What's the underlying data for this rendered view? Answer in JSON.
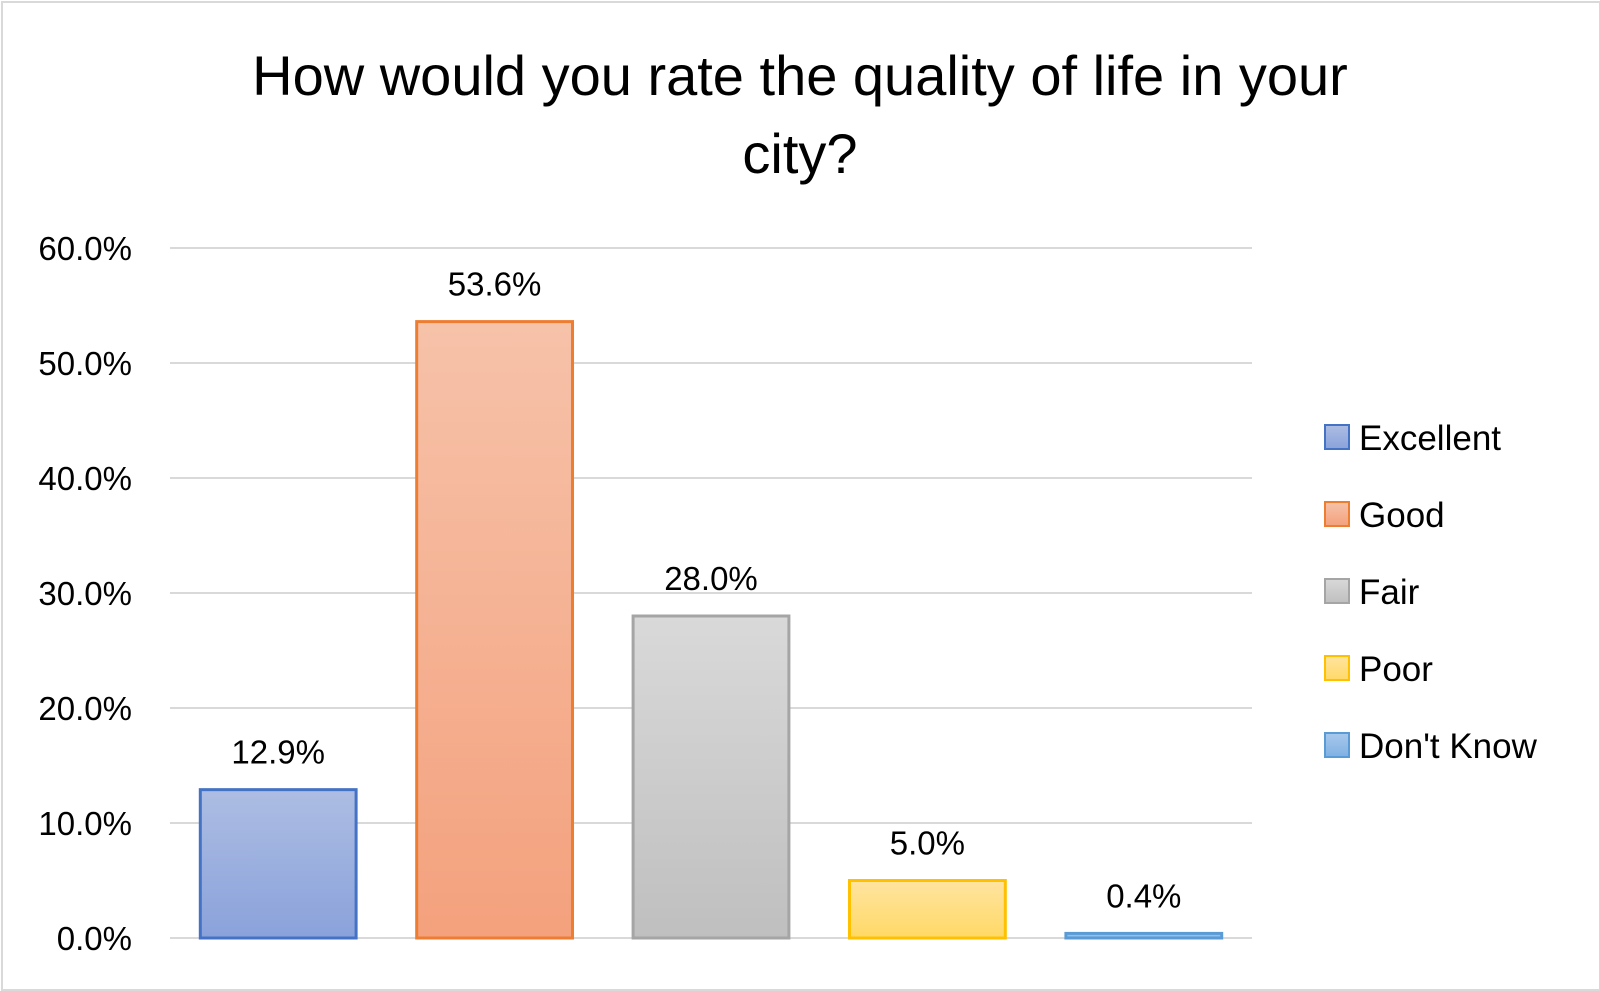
{
  "chart_data": {
    "type": "bar",
    "title": "How would you rate the quality of life in your city?",
    "title_lines": [
      "How would you rate the quality of life in your",
      "city?"
    ],
    "categories": [
      "Excellent",
      "Good",
      "Fair",
      "Poor",
      "Don't Know"
    ],
    "values": [
      12.9,
      53.6,
      28.0,
      5.0,
      0.4
    ],
    "value_labels": [
      "12.9%",
      "53.6%",
      "28.0%",
      "5.0%",
      "0.4%"
    ],
    "ylim": [
      0,
      60
    ],
    "yticks": [
      0,
      10,
      20,
      30,
      40,
      50,
      60
    ],
    "ytick_labels": [
      "0.0%",
      "10.0%",
      "20.0%",
      "30.0%",
      "40.0%",
      "50.0%",
      "60.0%"
    ],
    "xlabel": "",
    "ylabel": "",
    "grid": true,
    "legend": {
      "position": "right",
      "entries": [
        "Excellent",
        "Good",
        "Fair",
        "Poor",
        "Don't Know"
      ]
    },
    "colors": [
      {
        "fill_top": "#adbde3",
        "fill_bottom": "#8aa2db",
        "stroke": "#4472c4"
      },
      {
        "fill_top": "#f6c2a9",
        "fill_bottom": "#f4a17d",
        "stroke": "#ed7d31"
      },
      {
        "fill_top": "#d9d9d9",
        "fill_bottom": "#bfbfbf",
        "stroke": "#a5a5a5"
      },
      {
        "fill_top": "#ffe4a0",
        "fill_bottom": "#ffd966",
        "stroke": "#ffc000"
      },
      {
        "fill_top": "#a9c9ec",
        "fill_bottom": "#7fb1e3",
        "stroke": "#5b9bd5"
      }
    ],
    "gridline_color": "#d9d9d9",
    "text_color": "#000000"
  }
}
